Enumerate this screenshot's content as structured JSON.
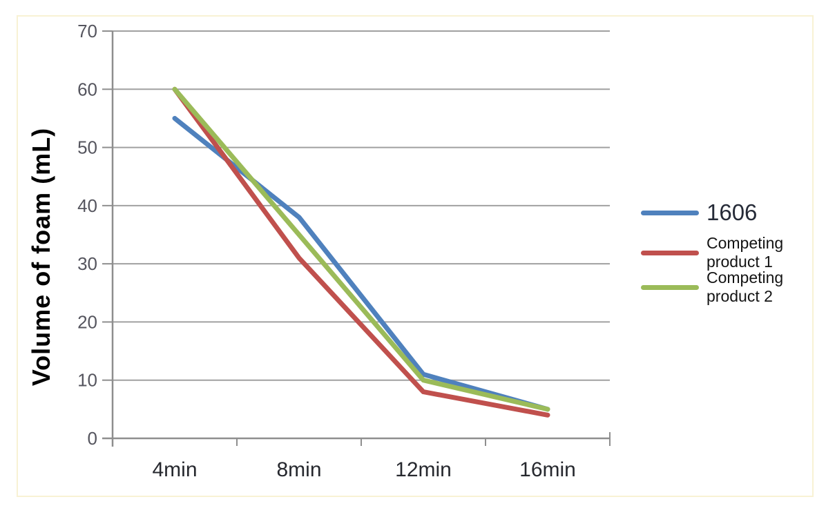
{
  "chart_data": {
    "type": "line",
    "title": "",
    "xlabel": "",
    "ylabel": "Volume of foam (mL)",
    "categories": [
      "4min",
      "8min",
      "12min",
      "16min"
    ],
    "ylim": [
      0,
      70
    ],
    "yticks": [
      0,
      10,
      20,
      30,
      40,
      50,
      60,
      70
    ],
    "grid": "horizontal gridlines every 10 mL",
    "legend_position": "right, no border",
    "series": [
      {
        "name": "1606",
        "legend_lines": [
          "1606"
        ],
        "legend_text_size": "large",
        "color": "#4f81bd",
        "values": [
          55,
          38,
          11,
          5
        ]
      },
      {
        "name": "Competing product 1",
        "legend_lines": [
          "Competing",
          "product 1"
        ],
        "legend_text_size": "small",
        "color": "#c0504d",
        "values": [
          60,
          31,
          8,
          4
        ]
      },
      {
        "name": "Competing product 2",
        "legend_lines": [
          "Competing",
          "product 2"
        ],
        "legend_text_size": "small",
        "color": "#9bbb59",
        "values": [
          60,
          35,
          10,
          5
        ]
      }
    ],
    "colors": {
      "gridline": "#a0a0a0",
      "axis": "#8e8e8e",
      "ytick_label": "#55555e",
      "xtick_label": "#26282e",
      "axis_title": "#000000",
      "legend_large_text": "#262b38",
      "legend_text": "#141414",
      "chart_frame": "#f6eec6"
    }
  }
}
